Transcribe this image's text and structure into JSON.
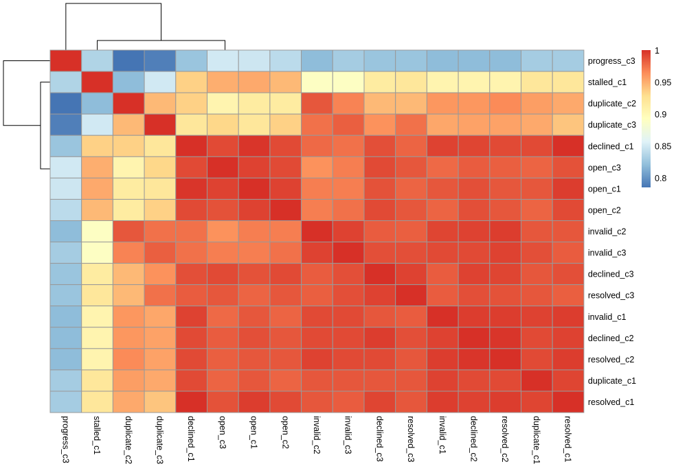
{
  "chart_data": {
    "type": "heatmap",
    "title": "",
    "row_labels": [
      "progress_c3",
      "stalled_c1",
      "duplicate_c2",
      "duplicate_c3",
      "declined_c1",
      "open_c3",
      "open_c1",
      "open_c2",
      "invalid_c2",
      "invalid_c3",
      "declined_c3",
      "resolved_c3",
      "invalid_c1",
      "declined_c2",
      "resolved_c2",
      "duplicate_c1",
      "resolved_c1"
    ],
    "col_labels": [
      "progress_c3",
      "stalled_c1",
      "duplicate_c2",
      "duplicate_c3",
      "declined_c1",
      "open_c3",
      "open_c1",
      "open_c2",
      "invalid_c2",
      "invalid_c3",
      "declined_c3",
      "resolved_c3",
      "invalid_c1",
      "declined_c2",
      "resolved_c2",
      "duplicate_c1",
      "resolved_c1"
    ],
    "values": [
      [
        1,
        0.835,
        0.78,
        0.79,
        0.825,
        0.85,
        0.848,
        0.84,
        0.82,
        0.83,
        0.825,
        0.825,
        0.82,
        0.82,
        0.82,
        0.83,
        0.83
      ],
      [
        0.835,
        1,
        0.82,
        0.85,
        0.935,
        0.95,
        0.952,
        0.945,
        0.89,
        0.89,
        0.915,
        0.92,
        0.905,
        0.905,
        0.905,
        0.92,
        0.92
      ],
      [
        0.78,
        0.82,
        1,
        0.945,
        0.935,
        0.905,
        0.915,
        0.915,
        0.985,
        0.968,
        0.945,
        0.945,
        0.96,
        0.96,
        0.965,
        0.957,
        0.952
      ],
      [
        0.79,
        0.85,
        0.945,
        1,
        0.92,
        0.932,
        0.92,
        0.935,
        0.975,
        0.982,
        0.962,
        0.975,
        0.953,
        0.955,
        0.955,
        0.952,
        0.94
      ],
      [
        0.825,
        0.935,
        0.935,
        0.92,
        1,
        0.99,
        0.998,
        0.99,
        0.978,
        0.975,
        0.988,
        0.98,
        0.993,
        0.992,
        0.99,
        0.99,
        1
      ],
      [
        0.85,
        0.95,
        0.905,
        0.932,
        0.99,
        1,
        0.993,
        0.99,
        0.962,
        0.97,
        0.99,
        0.985,
        0.978,
        0.983,
        0.982,
        0.98,
        0.987
      ],
      [
        0.848,
        0.952,
        0.915,
        0.92,
        0.998,
        0.993,
        1,
        0.993,
        0.97,
        0.97,
        0.987,
        0.98,
        0.985,
        0.988,
        0.985,
        0.985,
        0.995
      ],
      [
        0.84,
        0.945,
        0.915,
        0.935,
        0.99,
        0.987,
        0.993,
        1,
        0.97,
        0.975,
        0.99,
        0.985,
        0.98,
        0.988,
        0.985,
        0.98,
        0.99
      ],
      [
        0.82,
        0.89,
        0.985,
        0.975,
        0.975,
        0.962,
        0.97,
        0.97,
        1,
        0.993,
        0.983,
        0.982,
        0.992,
        0.993,
        0.995,
        0.985,
        0.985
      ],
      [
        0.83,
        0.89,
        0.968,
        0.982,
        0.975,
        0.97,
        0.97,
        0.975,
        0.993,
        1,
        0.988,
        0.988,
        0.99,
        0.99,
        0.993,
        0.988,
        0.983
      ],
      [
        0.825,
        0.915,
        0.945,
        0.962,
        0.988,
        0.99,
        0.987,
        0.99,
        0.983,
        0.988,
        1,
        0.993,
        0.983,
        0.993,
        0.992,
        0.985,
        0.988
      ],
      [
        0.825,
        0.92,
        0.945,
        0.975,
        0.983,
        0.985,
        0.98,
        0.985,
        0.982,
        0.988,
        0.993,
        1,
        0.983,
        0.988,
        0.987,
        0.985,
        0.982
      ],
      [
        0.82,
        0.905,
        0.96,
        0.953,
        0.993,
        0.978,
        0.985,
        0.98,
        0.99,
        0.99,
        0.985,
        0.983,
        1,
        0.995,
        0.995,
        0.993,
        0.995
      ],
      [
        0.82,
        0.905,
        0.96,
        0.955,
        0.99,
        0.983,
        0.988,
        0.985,
        0.99,
        0.99,
        0.995,
        0.988,
        0.993,
        1,
        0.998,
        0.99,
        0.993
      ],
      [
        0.82,
        0.905,
        0.965,
        0.955,
        0.99,
        0.982,
        0.985,
        0.985,
        0.993,
        0.99,
        0.99,
        0.985,
        0.995,
        0.998,
        1,
        0.99,
        0.995
      ],
      [
        0.83,
        0.92,
        0.957,
        0.952,
        0.99,
        0.98,
        0.985,
        0.98,
        0.985,
        0.985,
        0.985,
        0.985,
        0.993,
        0.99,
        0.99,
        1,
        0.992
      ],
      [
        0.83,
        0.92,
        0.952,
        0.94,
        1,
        0.987,
        0.995,
        0.99,
        0.985,
        0.983,
        0.992,
        0.985,
        0.995,
        0.993,
        0.995,
        0.992,
        1
      ]
    ],
    "color_range": [
      0.785,
      1
    ],
    "palette": [
      "#4575B4",
      "#91BFDB",
      "#E0F3F8",
      "#FFFFBF",
      "#FEE090",
      "#FC8D59",
      "#D73027"
    ],
    "cell_border_color": "#999999",
    "legend": {
      "placement": "right",
      "ticks": [
        1,
        0.95,
        0.9,
        0.85,
        0.8
      ],
      "tick_labels": [
        "1",
        "0.95",
        "0.9",
        "0.85",
        "0.8"
      ]
    },
    "row_dendrogram": true,
    "col_dendrogram": true
  }
}
